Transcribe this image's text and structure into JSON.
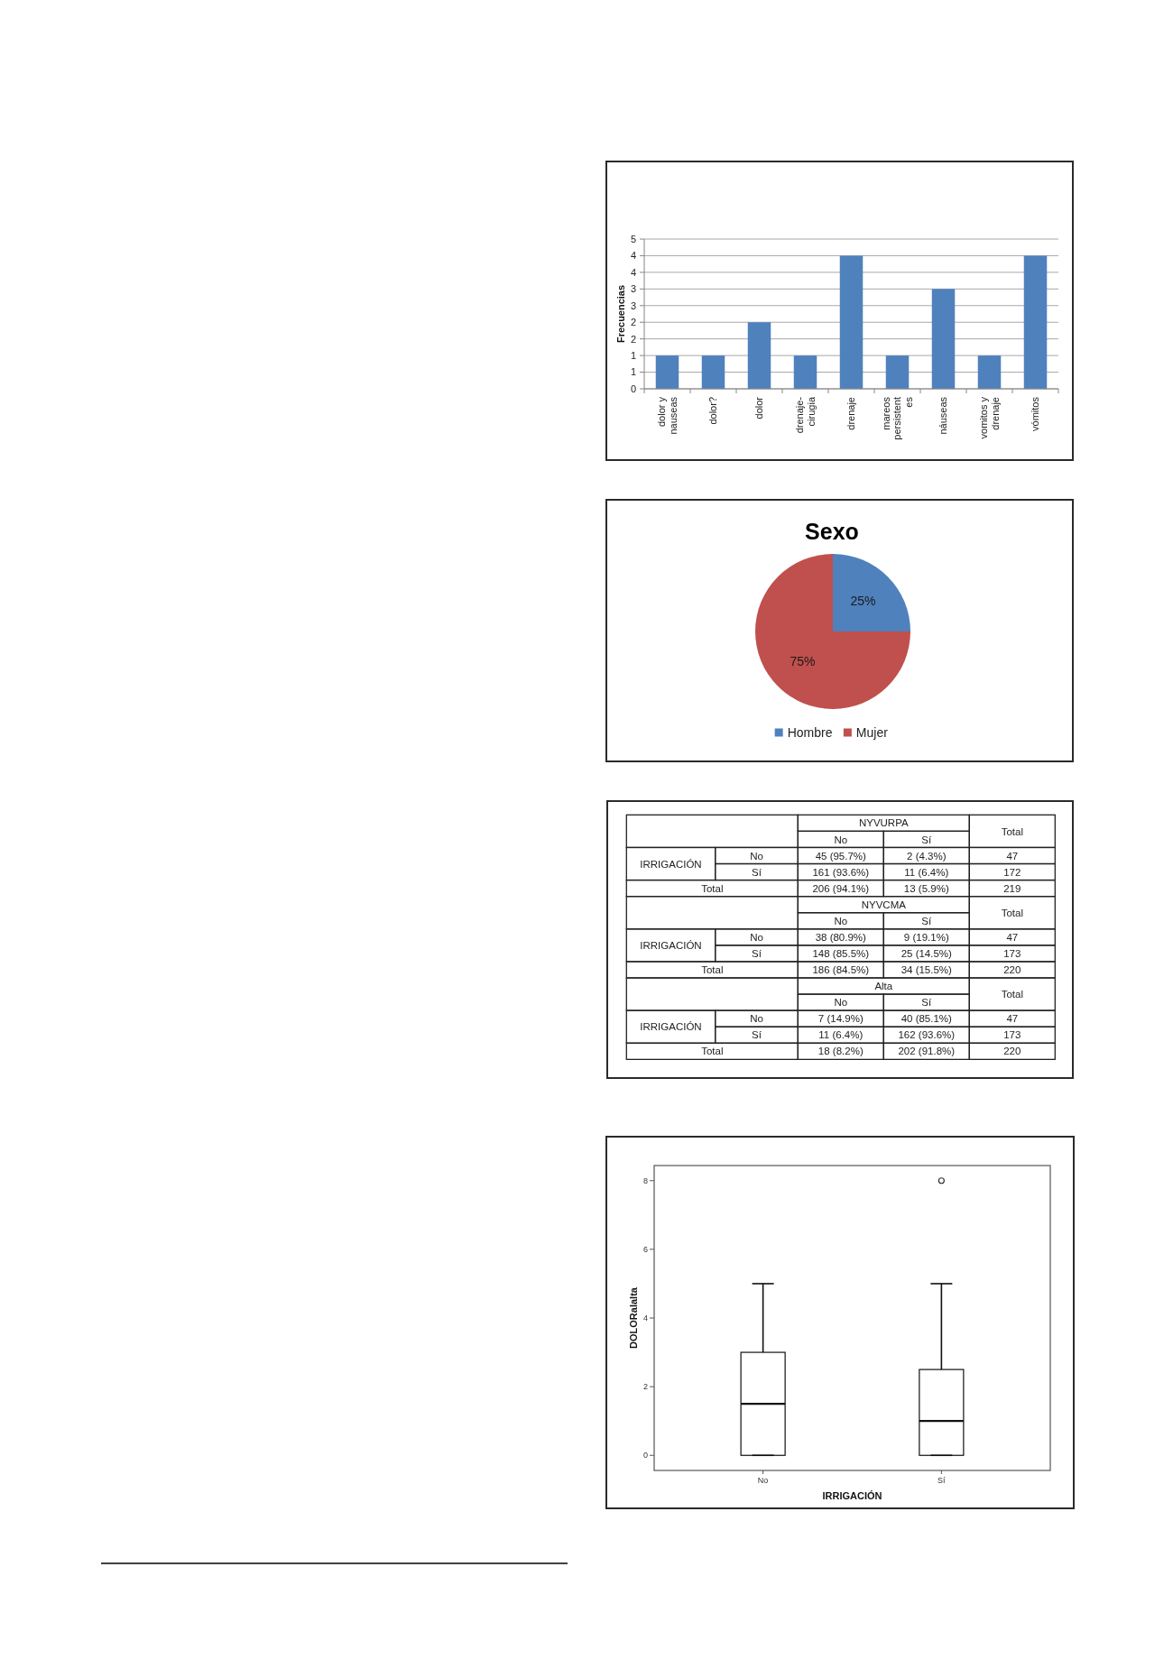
{
  "chart_data": [
    {
      "type": "bar",
      "ylabel": "Frecuencias",
      "categories": [
        "dolor y nauseas",
        "dolor?",
        "dolor",
        "drenaje-cirugia",
        "drenaje",
        "mareos persistentes",
        "náuseas",
        "vomitos y drenaje",
        "vómitos"
      ],
      "values": [
        1,
        1,
        2,
        1,
        4,
        1,
        3,
        1,
        4
      ],
      "color": "#4f81bd",
      "ylim": [
        0,
        4.5
      ],
      "yticks": [
        {
          "value": 0,
          "label": "0"
        },
        {
          "value": 0.5,
          "label": "1"
        },
        {
          "value": 1,
          "label": "1"
        },
        {
          "value": 1.5,
          "label": "2"
        },
        {
          "value": 2,
          "label": "2"
        },
        {
          "value": 2.5,
          "label": "3"
        },
        {
          "value": 3,
          "label": "3"
        },
        {
          "value": 3.5,
          "label": "4"
        },
        {
          "value": 4,
          "label": "4"
        },
        {
          "value": 4.5,
          "label": "5"
        }
      ],
      "grid": "y"
    },
    {
      "type": "pie",
      "title": "Sexo",
      "categories": [
        "Hombre",
        "Mujer"
      ],
      "values": [
        25,
        75
      ],
      "colors": [
        "#4f81bd",
        "#c0504d"
      ],
      "value_labels": [
        "25%",
        "75%"
      ],
      "legend": "bottom"
    },
    {
      "type": "other",
      "annotations": [
        "NYVURPA",
        "Total",
        "No",
        "Sí",
        "IRRIGACIÓN",
        "No",
        "45 (95.7%)",
        "2 (4.3%)",
        "47",
        "Sí",
        "161 (93.6%)",
        "11 (6.4%)",
        "172",
        "Total",
        "206 (94.1%)",
        "13 (5.9%)",
        "219",
        "NYVCMA",
        "Total",
        "No",
        "Sí",
        "IRRIGACIÓN",
        "No",
        "38 (80.9%)",
        "9 (19.1%)",
        "47",
        "Sí",
        "148 (85.5%)",
        "25 (14.5%)",
        "173",
        "Total",
        "186 (84.5%)",
        "34 (15.5%)",
        "220",
        "Alta",
        "Total",
        "No",
        "Sí",
        "IRRIGACIÓN",
        "No",
        "7 (14.9%)",
        "40 (85.1%)",
        "47",
        "Sí",
        "11 (6.4%)",
        "162 (93.6%)",
        "173",
        "Total",
        "18 (8.2%)",
        "202 (91.8%)",
        "220"
      ]
    },
    {
      "type": "box",
      "xlabel": "IRRIGACIÓN",
      "ylabel": "DOLORalalta",
      "categories": [
        "No",
        "Sí"
      ],
      "boxes": [
        {
          "low": 0,
          "q1": 0,
          "median": 1.5,
          "q3": 3,
          "high": 5
        },
        {
          "low": 0,
          "q1": 0,
          "median": 1,
          "q3": 2.5,
          "high": 5,
          "outliers": [
            8
          ]
        }
      ],
      "ylim": [
        -0.44,
        8.44
      ],
      "yticks": [
        0,
        2,
        4,
        6,
        8
      ]
    }
  ]
}
